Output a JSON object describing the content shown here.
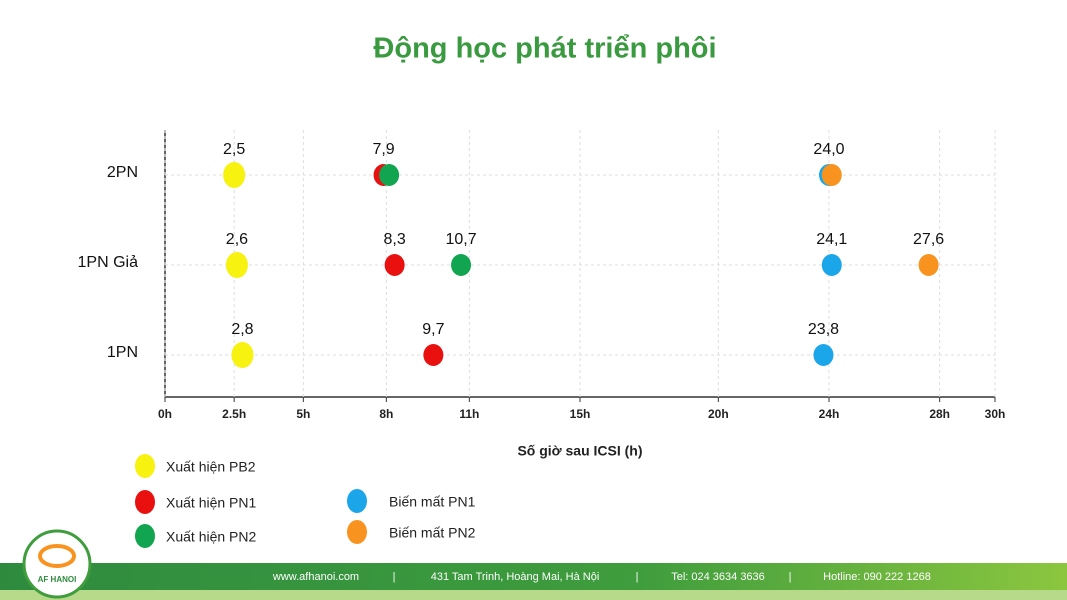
{
  "chart_data": {
    "type": "scatter",
    "title": "Động học phát triển phôi",
    "xlabel": "Số giờ sau ICSI (h)",
    "categories": [
      "2PN",
      "1PN Giả",
      "1PN"
    ],
    "xlim": [
      0,
      30
    ],
    "xticks": [
      {
        "value": 0,
        "label": "0h"
      },
      {
        "value": 2.5,
        "label": "2.5h"
      },
      {
        "value": 5,
        "label": "5h"
      },
      {
        "value": 8,
        "label": "8h"
      },
      {
        "value": 11,
        "label": "11h"
      },
      {
        "value": 15,
        "label": "15h"
      },
      {
        "value": 20,
        "label": "20h"
      },
      {
        "value": 24,
        "label": "24h"
      },
      {
        "value": 28,
        "label": "28h"
      },
      {
        "value": 30,
        "label": "30h"
      }
    ],
    "grid": true,
    "series": [
      {
        "name": "Xuất hiện PB2",
        "color": "#f7f20f",
        "values": [
          2.5,
          2.6,
          2.8
        ],
        "value_labels": [
          "2,5",
          "2,6",
          "2,8"
        ]
      },
      {
        "name": "Xuất hiện PN1",
        "color": "#e8110f",
        "values": [
          7.9,
          8.3,
          9.7
        ],
        "value_labels": [
          "7,9",
          "8,3",
          "9,7"
        ]
      },
      {
        "name": "Xuất hiện PN2",
        "color": "#12a550",
        "values": [
          8.1,
          10.7,
          null
        ],
        "value_labels": [
          null,
          "10,7",
          null
        ]
      },
      {
        "name": "Biến mất PN1",
        "color": "#1ba6ea",
        "values": [
          24.0,
          24.1,
          23.8
        ],
        "value_labels": [
          "24,0",
          "24,1",
          "23,8"
        ]
      },
      {
        "name": "Biến mất PN2",
        "color": "#f7931e",
        "values": [
          24.1,
          27.6,
          null
        ],
        "value_labels": [
          null,
          "27,6",
          null
        ]
      }
    ]
  },
  "footer": {
    "logo": "AF HANOI",
    "website": "www.afhanoi.com",
    "address": "431 Tam Trinh, Hoàng Mai, Hà Nội",
    "phone": "Tel: 024 3634 3636",
    "hotline": "Hotline: 090 222 1268"
  }
}
